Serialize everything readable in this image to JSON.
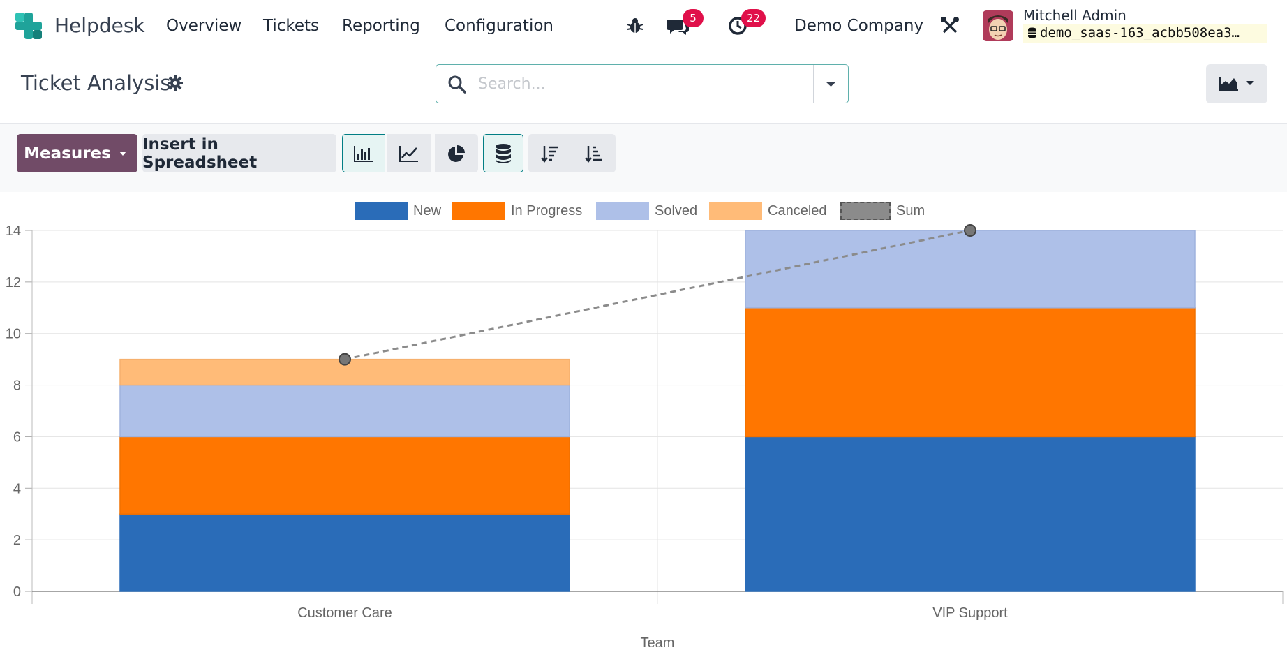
{
  "navbar": {
    "app_name": "Helpdesk",
    "menu": [
      "Overview",
      "Tickets",
      "Reporting",
      "Configuration"
    ],
    "messages_count": "5",
    "activities_count": "22",
    "company": "Demo Company",
    "user_name": "Mitchell Admin",
    "database": "demo_saas-163_acbb508ea3…"
  },
  "control_panel": {
    "title": "Ticket Analysis",
    "search_placeholder": "Search..."
  },
  "toolbar": {
    "measures_label": "Measures",
    "insert_label": "Insert in Spreadsheet"
  },
  "colors": {
    "brand": "#714b67",
    "accent": "#017e84",
    "new": "#2a6cb8",
    "in_progress": "#ff7600",
    "solved": "#aec0e8",
    "canceled": "#ffbb78",
    "sum": "#8b8b8b"
  },
  "chart_data": {
    "type": "bar",
    "stacked": true,
    "categories": [
      "Customer Care",
      "VIP Support"
    ],
    "series": [
      {
        "name": "New",
        "values": [
          3,
          6
        ]
      },
      {
        "name": "In Progress",
        "values": [
          3,
          5
        ]
      },
      {
        "name": "Solved",
        "values": [
          2,
          3
        ]
      },
      {
        "name": "Canceled",
        "values": [
          1,
          0
        ]
      }
    ],
    "sum_line": {
      "name": "Sum",
      "values": [
        9,
        14
      ]
    },
    "xlabel": "Team",
    "ylabel": "",
    "ylim": [
      0,
      14
    ],
    "yticks": [
      0,
      2,
      4,
      6,
      8,
      10,
      12,
      14
    ],
    "grid": true,
    "legend": "top"
  }
}
